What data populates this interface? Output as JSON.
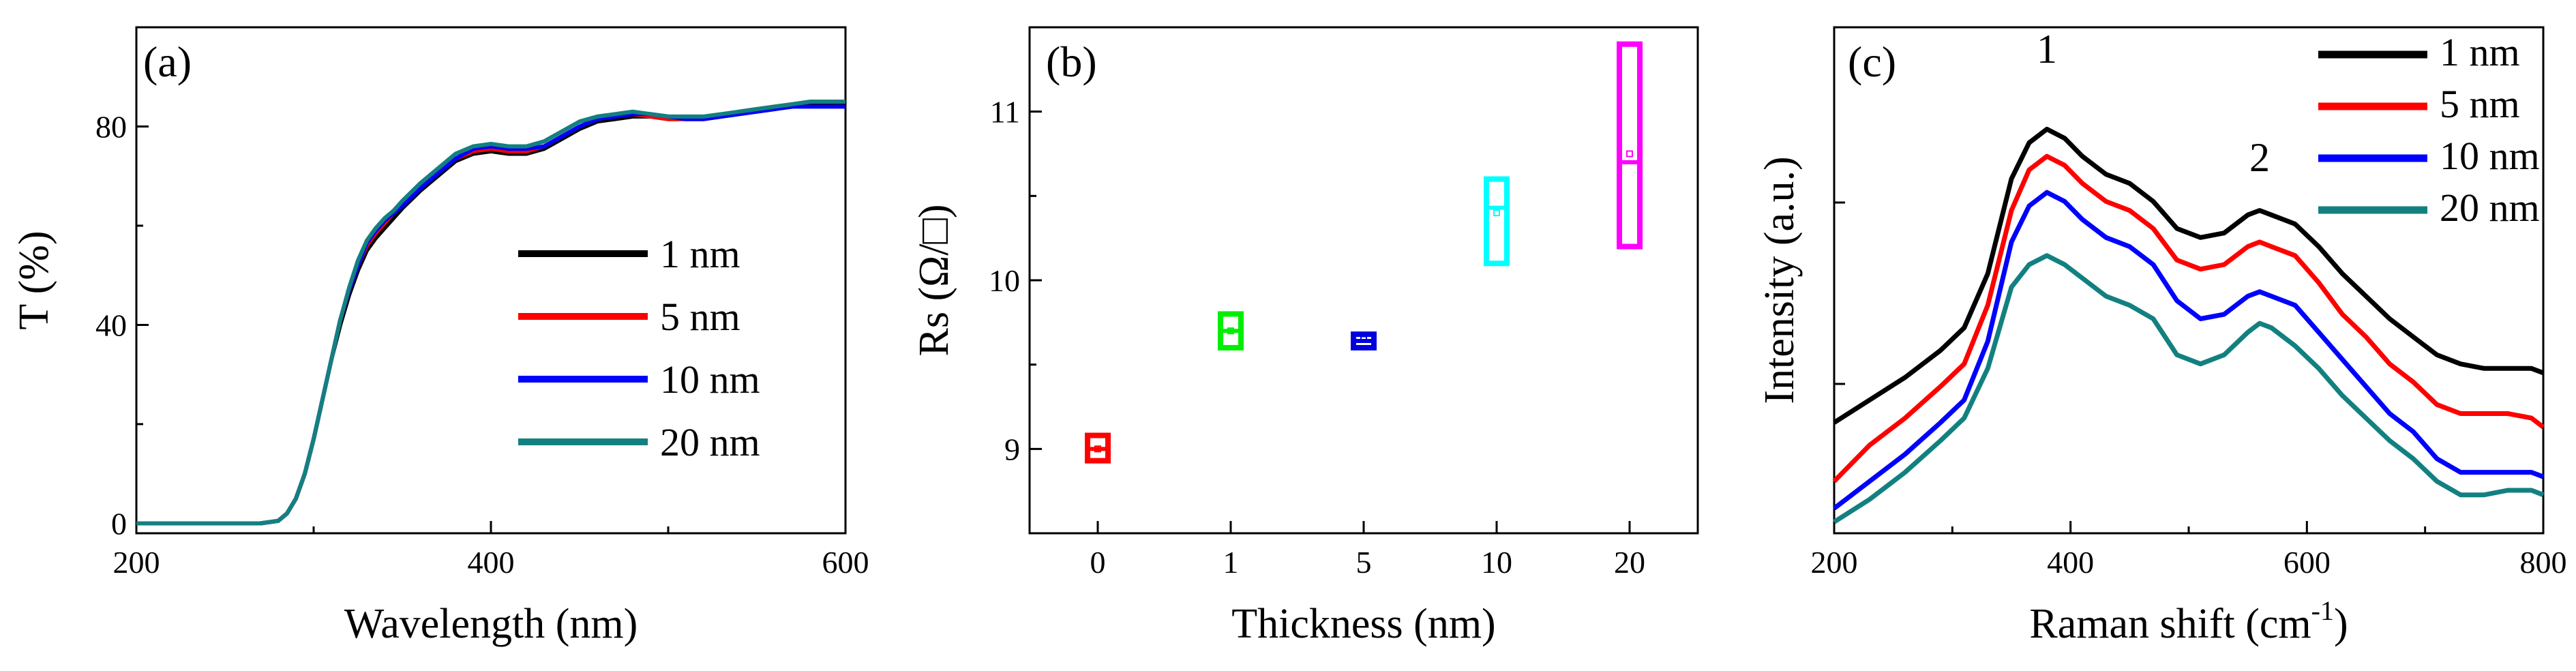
{
  "chart_data": [
    {
      "panel": "(a)",
      "type": "line",
      "xlabel": "Wavelength (nm)",
      "ylabel": "T (%)",
      "xlim": [
        200,
        600
      ],
      "ylim": [
        -2,
        100
      ],
      "xticks": [
        200,
        400,
        600
      ],
      "yticks": [
        0,
        40,
        80
      ],
      "legend_position": "lower-right",
      "series": [
        {
          "name": "1 nm",
          "color": "#000000",
          "x": [
            200,
            270,
            280,
            285,
            290,
            295,
            300,
            305,
            310,
            315,
            320,
            325,
            330,
            335,
            340,
            345,
            350,
            360,
            370,
            380,
            390,
            400,
            410,
            420,
            430,
            440,
            450,
            460,
            470,
            480,
            490,
            500,
            510,
            520,
            530,
            540,
            550,
            560,
            570,
            580,
            590,
            600
          ],
          "y": [
            0,
            0,
            0.5,
            2,
            5,
            10,
            17,
            25,
            33,
            40,
            46,
            51,
            55,
            57.5,
            59.5,
            61.5,
            63.5,
            67,
            70,
            73,
            74.5,
            75,
            74.5,
            74.5,
            75.5,
            77.5,
            79.5,
            81,
            81.5,
            82,
            82,
            81.5,
            81.5,
            81.5,
            82,
            82.5,
            83,
            83.5,
            84,
            84.5,
            84.5,
            84.5
          ]
        },
        {
          "name": "5 nm",
          "color": "#ff0000",
          "x": [
            200,
            270,
            280,
            285,
            290,
            295,
            300,
            305,
            310,
            315,
            320,
            325,
            330,
            335,
            340,
            345,
            350,
            360,
            370,
            380,
            390,
            400,
            410,
            420,
            430,
            440,
            450,
            460,
            470,
            480,
            490,
            500,
            510,
            520,
            530,
            540,
            550,
            560,
            570,
            580,
            590,
            600
          ],
          "y": [
            0,
            0,
            0.5,
            2,
            5,
            10,
            17,
            25,
            33,
            41,
            47,
            52,
            56,
            58.5,
            60.5,
            62.5,
            64.5,
            68,
            71,
            73.5,
            75,
            75.5,
            75,
            75,
            76,
            78,
            80,
            81.5,
            82,
            82.5,
            82,
            81.5,
            81.5,
            81.5,
            82,
            83,
            83.5,
            84,
            84.5,
            85,
            85,
            85
          ]
        },
        {
          "name": "10 nm",
          "color": "#0000ff",
          "x": [
            200,
            270,
            280,
            285,
            290,
            295,
            300,
            305,
            310,
            315,
            320,
            325,
            330,
            335,
            340,
            345,
            350,
            360,
            370,
            380,
            390,
            400,
            410,
            420,
            430,
            440,
            450,
            460,
            470,
            480,
            490,
            500,
            510,
            520,
            530,
            540,
            550,
            560,
            570,
            580,
            590,
            600
          ],
          "y": [
            0,
            0,
            0.5,
            2,
            5,
            10,
            17,
            25,
            33,
            41,
            47,
            52,
            56.5,
            59,
            61,
            62.5,
            64,
            67.5,
            70.5,
            73.5,
            75.5,
            76,
            75.5,
            75.5,
            76,
            78,
            80,
            81.5,
            82,
            82.5,
            82.5,
            82,
            81.5,
            81.5,
            82,
            82.5,
            83,
            83.5,
            84,
            84,
            84,
            84
          ]
        },
        {
          "name": "20 nm",
          "color": "#138080",
          "x": [
            200,
            270,
            280,
            285,
            290,
            295,
            300,
            305,
            310,
            315,
            320,
            325,
            330,
            335,
            340,
            345,
            350,
            360,
            370,
            380,
            390,
            400,
            410,
            420,
            430,
            440,
            450,
            460,
            470,
            480,
            490,
            500,
            510,
            520,
            530,
            540,
            550,
            560,
            570,
            580,
            590,
            600
          ],
          "y": [
            0,
            0,
            0.5,
            2,
            5,
            10,
            17,
            25,
            33,
            41,
            47.5,
            53,
            57,
            59.5,
            61.5,
            63,
            65,
            68.5,
            71.5,
            74.5,
            76,
            76.5,
            76,
            76,
            77,
            79,
            81,
            82,
            82.5,
            83,
            82.5,
            82,
            82,
            82,
            82.5,
            83,
            83.5,
            84,
            84.5,
            85,
            85,
            85
          ]
        }
      ]
    },
    {
      "panel": "(b)",
      "type": "box",
      "xlabel": "Thickness (nm)",
      "ylabel": "Rs (Ω/□)",
      "ylim": [
        8.5,
        11.5
      ],
      "yticks": [
        9,
        10,
        11
      ],
      "categories": [
        "0",
        "1",
        "5",
        "10",
        "20"
      ],
      "boxes": [
        {
          "category": "0",
          "low": 8.93,
          "high": 9.08,
          "median": 9.0,
          "mean": 9.0,
          "color": "#ff0000"
        },
        {
          "category": "1",
          "low": 9.6,
          "high": 9.8,
          "median": 9.7,
          "mean": 9.7,
          "color": "#00ee00"
        },
        {
          "category": "5",
          "low": 9.6,
          "high": 9.68,
          "median": 9.64,
          "mean": 9.65,
          "color": "#0000dd"
        },
        {
          "category": "10",
          "low": 10.1,
          "high": 10.6,
          "median": 10.43,
          "mean": 10.4,
          "color": "#00ffff"
        },
        {
          "category": "20",
          "low": 10.2,
          "high": 11.4,
          "median": 10.7,
          "mean": 10.75,
          "color": "#ff00ff"
        }
      ]
    },
    {
      "panel": "(c)",
      "type": "line",
      "xlabel": "Raman shift (cm",
      "xlabel_sup": "-1",
      "xlabel_end": ")",
      "ylabel": "Intensity (a.u.)",
      "xlim": [
        200,
        800
      ],
      "ylim": [
        0,
        100
      ],
      "xticks": [
        200,
        400,
        600,
        800
      ],
      "legend_position": "top-right",
      "annotations": [
        {
          "text": "1",
          "x": 380,
          "y": 100
        },
        {
          "text": "2",
          "x": 560,
          "y": 76
        }
      ],
      "series": [
        {
          "name": "1 nm",
          "color": "#000000",
          "x": [
            200,
            230,
            260,
            290,
            310,
            330,
            350,
            365,
            380,
            395,
            410,
            430,
            450,
            470,
            490,
            510,
            530,
            550,
            560,
            570,
            590,
            610,
            630,
            650,
            670,
            690,
            710,
            730,
            750,
            770,
            790,
            800
          ],
          "y": [
            23,
            28,
            33,
            39,
            44,
            56,
            77,
            85,
            88,
            86,
            82,
            78,
            76,
            72,
            66,
            64,
            65,
            69,
            70,
            69,
            67,
            62,
            56,
            51,
            46,
            42,
            38,
            36,
            35,
            35,
            35,
            34
          ]
        },
        {
          "name": "5 nm",
          "color": "#ff0000",
          "x": [
            200,
            230,
            260,
            290,
            310,
            330,
            350,
            365,
            380,
            395,
            410,
            430,
            450,
            470,
            490,
            510,
            530,
            550,
            560,
            570,
            590,
            610,
            630,
            650,
            670,
            690,
            710,
            730,
            750,
            770,
            790,
            800
          ],
          "y": [
            10,
            18,
            24,
            31,
            36,
            49,
            70,
            79,
            82,
            80,
            76,
            72,
            70,
            66,
            59,
            57,
            58,
            62,
            63,
            62,
            60,
            54,
            47,
            42,
            36,
            32,
            27,
            25,
            25,
            25,
            24,
            22
          ]
        },
        {
          "name": "10 nm",
          "color": "#0000ff",
          "x": [
            200,
            230,
            260,
            290,
            310,
            330,
            350,
            365,
            380,
            395,
            410,
            430,
            450,
            470,
            490,
            510,
            530,
            550,
            560,
            570,
            590,
            610,
            630,
            650,
            670,
            690,
            710,
            730,
            750,
            770,
            790,
            800
          ],
          "y": [
            4,
            10,
            16,
            23,
            28,
            41,
            63,
            71,
            74,
            72,
            68,
            64,
            62,
            58,
            50,
            46,
            47,
            51,
            52,
            51,
            49,
            43,
            37,
            31,
            25,
            21,
            15,
            12,
            12,
            12,
            12,
            11
          ]
        },
        {
          "name": "20 nm",
          "color": "#138080",
          "x": [
            200,
            230,
            260,
            290,
            310,
            330,
            350,
            365,
            380,
            395,
            410,
            430,
            450,
            470,
            490,
            510,
            530,
            550,
            560,
            570,
            590,
            610,
            630,
            650,
            670,
            690,
            710,
            730,
            750,
            770,
            790,
            800
          ],
          "y": [
            1,
            6,
            12,
            19,
            24,
            35,
            53,
            58,
            60,
            58,
            55,
            51,
            49,
            46,
            38,
            36,
            38,
            43,
            45,
            44,
            40,
            35,
            29,
            24,
            19,
            15,
            10,
            7,
            7,
            8,
            8,
            7
          ]
        }
      ]
    }
  ]
}
